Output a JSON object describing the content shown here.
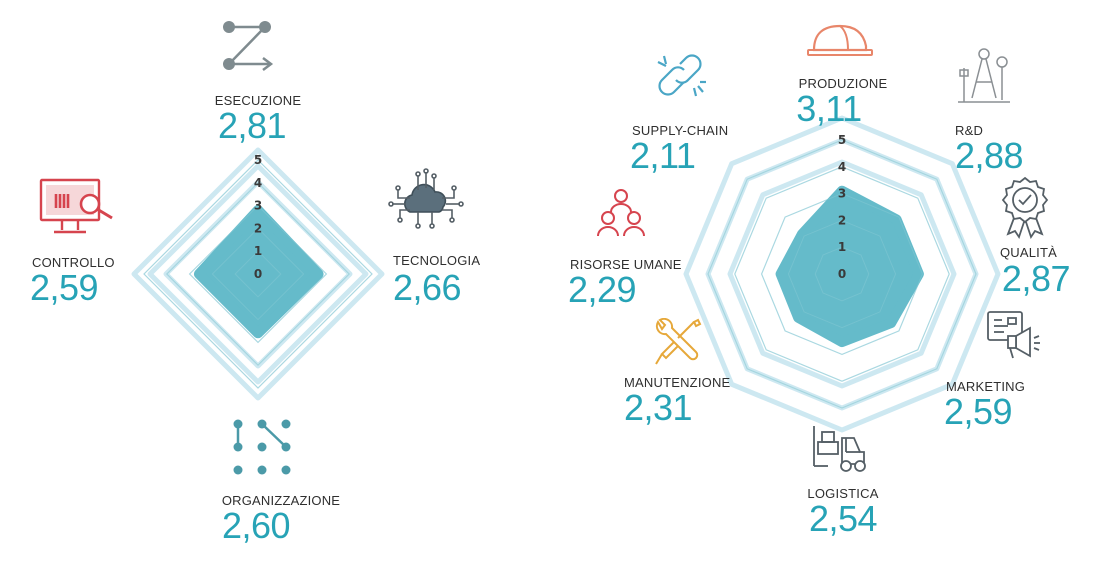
{
  "colors": {
    "fill": "#5db8c8",
    "value_text": "#27a3b6",
    "ring": "#c4e4ee",
    "grid": "#b0dbe4",
    "label_text": "#2f2f2f",
    "icon_red": "#d6444e",
    "icon_teal": "#4aa6c6",
    "icon_gray": "#7f8b8f",
    "icon_orange": "#e8866a",
    "icon_yellow": "#e6a83a"
  },
  "chart_data": [
    {
      "type": "radar",
      "ylim": [
        0,
        5
      ],
      "ticks": [
        "0",
        "1",
        "2",
        "3",
        "4",
        "5"
      ],
      "axes": [
        {
          "label": "ESECUZIONE",
          "value_text": "2,81",
          "value": 2.81,
          "icon": "arrow-zigzag-icon"
        },
        {
          "label": "TECNOLOGIA",
          "value_text": "2,66",
          "value": 2.66,
          "icon": "cloud-circuit-icon"
        },
        {
          "label": "ORGANIZZAZIONE",
          "value_text": "2,60",
          "value": 2.6,
          "icon": "node-grid-icon"
        },
        {
          "label": "CONTROLLO",
          "value_text": "2,59",
          "value": 2.59,
          "icon": "monitor-search-icon"
        }
      ]
    },
    {
      "type": "radar",
      "ylim": [
        0,
        5
      ],
      "ticks": [
        "0",
        "1",
        "2",
        "3",
        "4",
        "5"
      ],
      "axes": [
        {
          "label": "PRODUZIONE",
          "value_text": "3,11",
          "value": 3.11,
          "icon": "hard-hat-icon"
        },
        {
          "label": "R&D",
          "value_text": "2,88",
          "value": 2.88,
          "icon": "compass-drafting-icon"
        },
        {
          "label": "QUALITÀ",
          "value_text": "2,87",
          "value": 2.87,
          "icon": "quality-badge-icon"
        },
        {
          "label": "MARKETING",
          "value_text": "2,59",
          "value": 2.59,
          "icon": "megaphone-board-icon"
        },
        {
          "label": "LOGISTICA",
          "value_text": "2,54",
          "value": 2.54,
          "icon": "forklift-icon"
        },
        {
          "label": "MANUTENZIONE",
          "value_text": "2,31",
          "value": 2.31,
          "icon": "wrench-screwdriver-icon"
        },
        {
          "label": "RISORSE UMANE",
          "value_text": "2,29",
          "value": 2.29,
          "icon": "people-group-icon"
        },
        {
          "label": "SUPPLY-CHAIN",
          "value_text": "2,11",
          "value": 2.11,
          "icon": "chain-link-icon"
        }
      ]
    }
  ]
}
